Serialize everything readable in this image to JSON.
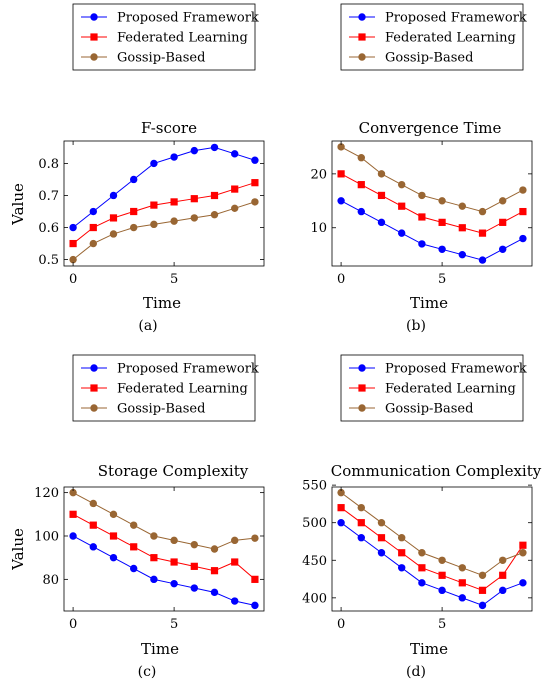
{
  "legend_entries": [
    {
      "name": "Proposed Framework",
      "color": "#0000ff",
      "marker": "circle"
    },
    {
      "name": "Federated Learning",
      "color": "#ff0000",
      "marker": "square"
    },
    {
      "name": "Gossip-Based",
      "color": "#996633",
      "marker": "circle"
    }
  ],
  "captions": [
    "(a)",
    "(b)",
    "(c)",
    "(d)"
  ],
  "chart_data": [
    {
      "type": "line",
      "title": "F-score",
      "xlabel": "Time",
      "ylabel": "Value",
      "x": [
        0,
        1,
        2,
        3,
        4,
        5,
        6,
        7,
        8,
        9
      ],
      "xticks": [
        0,
        5
      ],
      "yticks": [
        0.5,
        0.6,
        0.7,
        0.8
      ],
      "xlim": [
        -0.45,
        9.45
      ],
      "ylim": [
        0.48,
        0.87
      ],
      "legend_position": "top",
      "series": [
        {
          "name": "Proposed Framework",
          "values": [
            0.6,
            0.65,
            0.7,
            0.75,
            0.8,
            0.82,
            0.84,
            0.85,
            0.83,
            0.81
          ]
        },
        {
          "name": "Federated Learning",
          "values": [
            0.55,
            0.6,
            0.63,
            0.65,
            0.67,
            0.68,
            0.69,
            0.7,
            0.72,
            0.74
          ]
        },
        {
          "name": "Gossip-Based",
          "values": [
            0.5,
            0.55,
            0.58,
            0.6,
            0.61,
            0.62,
            0.63,
            0.64,
            0.66,
            0.68
          ]
        }
      ]
    },
    {
      "type": "line",
      "title": "Convergence Time",
      "xlabel": "Time",
      "ylabel": "",
      "x": [
        0,
        1,
        2,
        3,
        4,
        5,
        6,
        7,
        8,
        9
      ],
      "xticks": [
        0,
        5
      ],
      "yticks": [
        10,
        20
      ],
      "xlim": [
        -0.45,
        9.45
      ],
      "ylim": [
        2.9,
        26.1
      ],
      "legend_position": "top",
      "series": [
        {
          "name": "Proposed Framework",
          "values": [
            15,
            13,
            11,
            9,
            7,
            6,
            5,
            4,
            6,
            8
          ]
        },
        {
          "name": "Federated Learning",
          "values": [
            20,
            18,
            16,
            14,
            12,
            11,
            10,
            9,
            11,
            13
          ]
        },
        {
          "name": "Gossip-Based",
          "values": [
            25,
            23,
            20,
            18,
            16,
            15,
            14,
            13,
            15,
            17
          ]
        }
      ]
    },
    {
      "type": "line",
      "title": "Storage Complexity",
      "xlabel": "Time",
      "ylabel": "Value",
      "x": [
        0,
        1,
        2,
        3,
        4,
        5,
        6,
        7,
        8,
        9
      ],
      "xticks": [
        0,
        5
      ],
      "yticks": [
        80,
        100,
        120
      ],
      "xlim": [
        -0.45,
        9.45
      ],
      "ylim": [
        65.4,
        122.6
      ],
      "legend_position": "top",
      "series": [
        {
          "name": "Proposed Framework",
          "values": [
            100,
            95,
            90,
            85,
            80,
            78,
            76,
            74,
            70,
            68
          ]
        },
        {
          "name": "Federated Learning",
          "values": [
            110,
            105,
            100,
            95,
            90,
            88,
            86,
            84,
            88,
            80
          ]
        },
        {
          "name": "Gossip-Based",
          "values": [
            120,
            115,
            110,
            105,
            100,
            98,
            96,
            94,
            98,
            99
          ]
        }
      ]
    },
    {
      "type": "line",
      "title": "Communication Complexity",
      "xlabel": "Time",
      "ylabel": "",
      "x": [
        0,
        1,
        2,
        3,
        4,
        5,
        6,
        7,
        8,
        9
      ],
      "xticks": [
        0,
        5
      ],
      "yticks": [
        400,
        450,
        500,
        550
      ],
      "xlim": [
        -0.45,
        9.45
      ],
      "ylim": [
        382.5,
        547.5
      ],
      "legend_position": "top",
      "series": [
        {
          "name": "Proposed Framework",
          "values": [
            500,
            480,
            460,
            440,
            420,
            410,
            400,
            390,
            410,
            420
          ]
        },
        {
          "name": "Federated Learning",
          "values": [
            520,
            500,
            480,
            460,
            440,
            430,
            420,
            410,
            430,
            470
          ]
        },
        {
          "name": "Gossip-Based",
          "values": [
            540,
            520,
            500,
            480,
            460,
            450,
            440,
            430,
            450,
            460
          ]
        }
      ]
    }
  ]
}
